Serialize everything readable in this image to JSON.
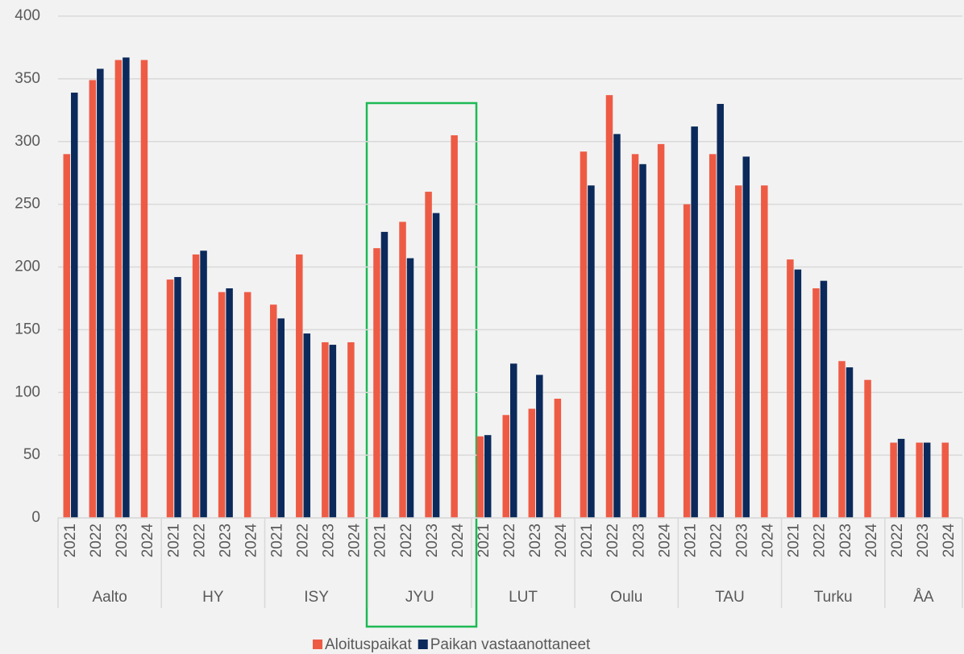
{
  "chart_data": {
    "type": "bar",
    "groups": [
      {
        "name": "Aalto",
        "categories": [
          "2021",
          "2022",
          "2023",
          "2024"
        ]
      },
      {
        "name": "HY",
        "categories": [
          "2021",
          "2022",
          "2023",
          "2024"
        ]
      },
      {
        "name": "ISY",
        "categories": [
          "2021",
          "2022",
          "2023",
          "2024"
        ]
      },
      {
        "name": "JYU",
        "categories": [
          "2021",
          "2022",
          "2023",
          "2024"
        ]
      },
      {
        "name": "LUT",
        "categories": [
          "2021",
          "2022",
          "2023",
          "2024"
        ]
      },
      {
        "name": "Oulu",
        "categories": [
          "2021",
          "2022",
          "2023",
          "2024"
        ]
      },
      {
        "name": "TAU",
        "categories": [
          "2021",
          "2022",
          "2023",
          "2024"
        ]
      },
      {
        "name": "Turku",
        "categories": [
          "2021",
          "2022",
          "2023",
          "2024"
        ]
      },
      {
        "name": "ÅA",
        "categories": [
          "2022",
          "2023",
          "2024"
        ]
      }
    ],
    "series": [
      {
        "name": "Aloituspaikat",
        "color": "#ee5b45",
        "values": [
          290,
          349,
          365,
          365,
          190,
          210,
          180,
          180,
          170,
          210,
          140,
          140,
          215,
          236,
          260,
          305,
          65,
          82,
          87,
          95,
          292,
          337,
          290,
          298,
          250,
          290,
          265,
          265,
          206,
          183,
          125,
          110,
          60,
          60,
          60
        ]
      },
      {
        "name": "Paikan vastaanottaneet",
        "color": "#0b2a5b",
        "values": [
          339,
          358,
          367,
          null,
          192,
          213,
          183,
          null,
          159,
          147,
          138,
          null,
          228,
          207,
          243,
          null,
          66,
          123,
          114,
          null,
          265,
          306,
          282,
          null,
          312,
          330,
          288,
          null,
          198,
          189,
          120,
          null,
          63,
          60,
          null
        ]
      }
    ],
    "ylim": [
      0,
      400
    ],
    "yticks": [
      0,
      50,
      100,
      150,
      200,
      250,
      300,
      350,
      400
    ],
    "grid": true,
    "legend": "bottom"
  }
}
